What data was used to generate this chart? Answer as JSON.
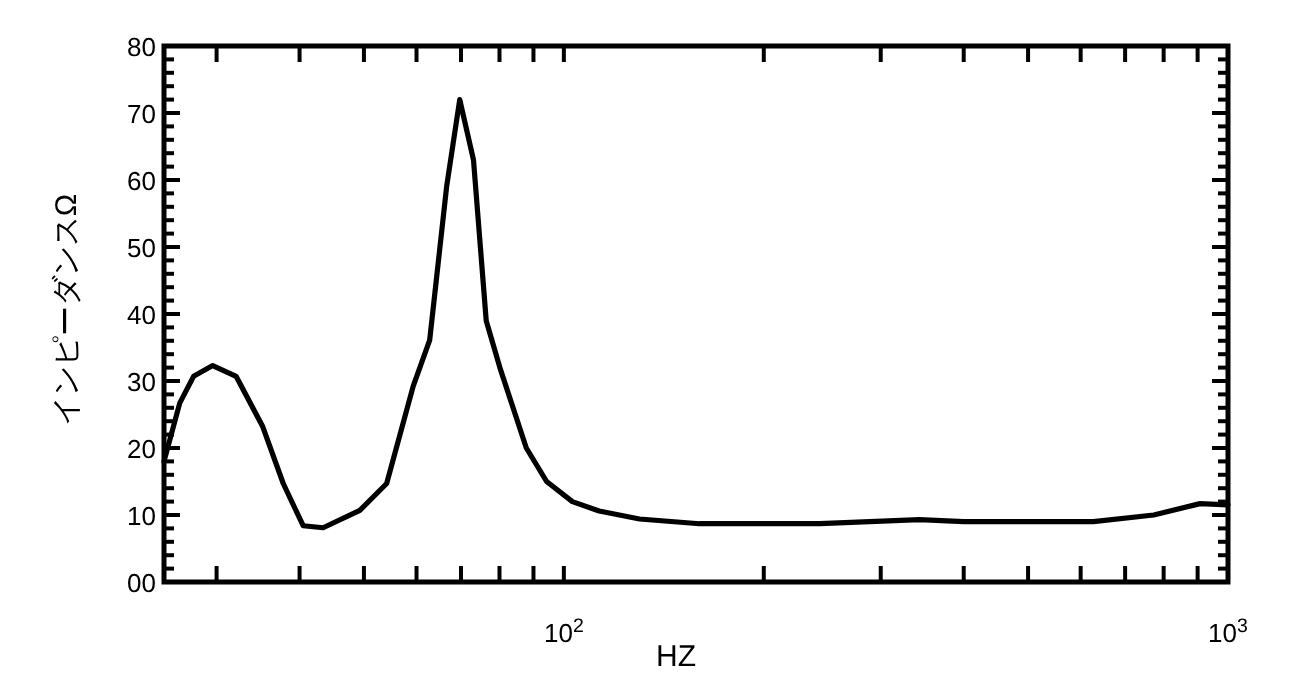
{
  "chart_data": {
    "type": "line",
    "xlabel": "HZ",
    "ylabel": "インピーダンスΩ",
    "log": "x",
    "grid": false,
    "marker": "none",
    "line_style": "solid",
    "xlim": [
      25,
      1000
    ],
    "xticks": [
      {
        "value": 30,
        "label": null
      },
      {
        "value": 40,
        "label": null
      },
      {
        "value": 50,
        "label": null
      },
      {
        "value": 60,
        "label": null
      },
      {
        "value": 70,
        "label": null
      },
      {
        "value": 80,
        "label": null
      },
      {
        "value": 90,
        "label": null
      },
      {
        "value": 100,
        "label": "10$^{2}$"
      },
      {
        "value": 200,
        "label": null
      },
      {
        "value": 300,
        "label": null
      },
      {
        "value": 400,
        "label": null
      },
      {
        "value": 500,
        "label": null
      },
      {
        "value": 600,
        "label": null
      },
      {
        "value": 700,
        "label": null
      },
      {
        "value": 800,
        "label": null
      },
      {
        "value": 900,
        "label": null
      },
      {
        "value": 1000,
        "label": "10$^{3}$"
      }
    ],
    "ylim": [
      0,
      80
    ],
    "yticks": [
      {
        "value": 0,
        "label": "00"
      },
      10,
      20,
      30,
      40,
      50,
      60,
      70,
      80
    ],
    "x": [
      25,
      26.4,
      27.7,
      29.6,
      32.1,
      35.2,
      37.8,
      40.5,
      43.4,
      49.3,
      54.1,
      59.3,
      62.8,
      66.6,
      69.7,
      73.1,
      76.4,
      80.1,
      87.8,
      94.2,
      103,
      113,
      130,
      160,
      243,
      343,
      400,
      627,
      773,
      908,
      1000
    ],
    "series": [
      {
        "color": "#000000",
        "values": [
          18,
          26.7,
          30.7,
          32.3,
          30.7,
          23.2,
          14.7,
          8.4,
          8.1,
          10.7,
          14.7,
          29.2,
          36.1,
          59,
          72,
          63,
          39,
          32,
          20,
          15,
          12,
          10.6,
          9.4,
          8.7,
          8.7,
          9.3,
          9,
          9,
          10,
          11.7,
          11.5
        ]
      }
    ]
  }
}
